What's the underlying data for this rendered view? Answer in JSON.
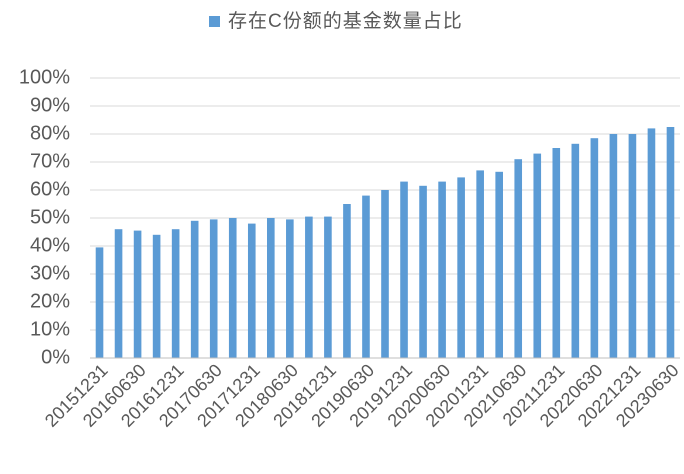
{
  "chart_data": {
    "type": "bar",
    "categories": [
      "20151231",
      null,
      "20160630",
      null,
      "20161231",
      null,
      "20170630",
      null,
      "20171231",
      null,
      "20180630",
      null,
      "20181231",
      null,
      "20190630",
      null,
      "20191231",
      null,
      "20200630",
      null,
      "20201231",
      null,
      "20210630",
      null,
      "20211231",
      null,
      "20220630",
      null,
      "20221231",
      null,
      "20230630"
    ],
    "series": [
      {
        "name": "存在C份额的基金数量占比",
        "color": "#5b9bd5",
        "values": [
          39.5,
          46,
          45.5,
          44,
          46,
          49,
          49.5,
          50,
          48,
          50,
          49.5,
          50.5,
          50.5,
          55,
          58,
          60,
          63,
          61.5,
          63,
          64.5,
          67,
          66.5,
          71,
          73,
          75,
          76.5,
          78.5,
          80,
          80,
          82,
          82.5
        ]
      }
    ],
    "ylim": [
      0,
      100
    ],
    "yticks": [
      {
        "value": 0,
        "label": "0%"
      },
      {
        "value": 10,
        "label": "10%"
      },
      {
        "value": 20,
        "label": "20%"
      },
      {
        "value": 30,
        "label": "30%"
      },
      {
        "value": 40,
        "label": "40%"
      },
      {
        "value": 50,
        "label": "50%"
      },
      {
        "value": 60,
        "label": "60%"
      },
      {
        "value": 70,
        "label": "70%"
      },
      {
        "value": 80,
        "label": "80%"
      },
      {
        "value": 90,
        "label": "90%"
      },
      {
        "value": 100,
        "label": "100%"
      }
    ],
    "grid": true,
    "legend": "top"
  }
}
